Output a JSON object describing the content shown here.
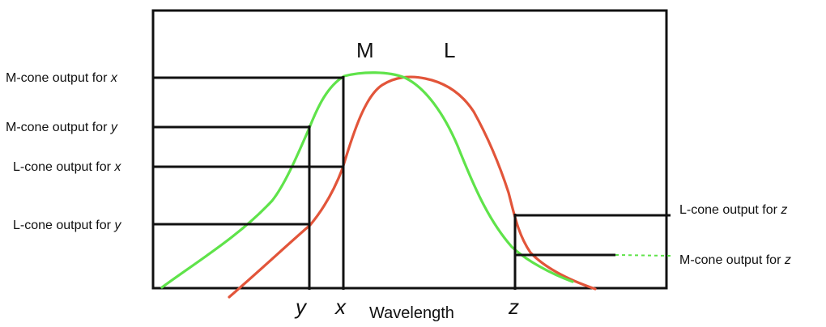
{
  "diagram": {
    "curve_labels": {
      "m": "M",
      "l": "L"
    },
    "axis_label": "Wavelength",
    "wavelength_marks": [
      "y",
      "x",
      "z"
    ],
    "left_annotations": [
      {
        "text": "M-cone output for ",
        "var": "x"
      },
      {
        "text": "M-cone output for ",
        "var": "y"
      },
      {
        "text": "L-cone output for ",
        "var": "x"
      },
      {
        "text": "L-cone output for ",
        "var": "y"
      }
    ],
    "right_annotations": [
      {
        "text": "L-cone output for ",
        "var": "z"
      },
      {
        "text": "M-cone output for ",
        "var": "z"
      }
    ],
    "colors": {
      "m_curve": "#5fe34a",
      "l_curve": "#e2553a",
      "lines": "#111111",
      "background": "#ffffff"
    }
  }
}
